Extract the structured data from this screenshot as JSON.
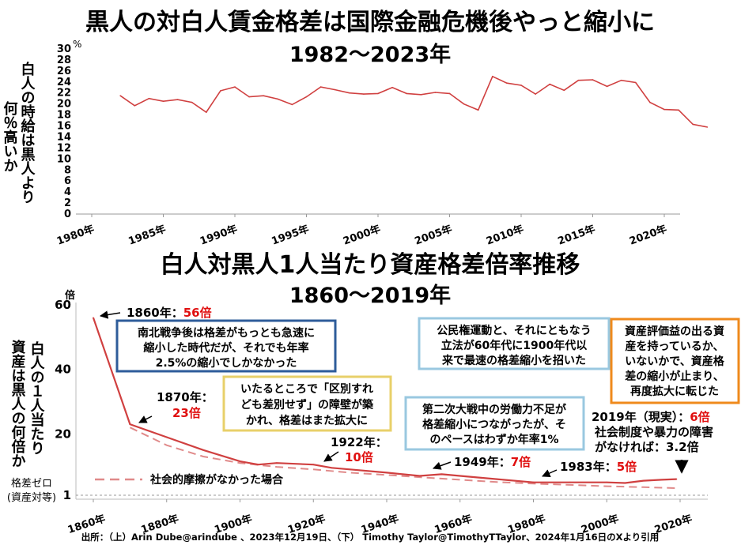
{
  "top_chart": {
    "title": "黒人の対白人賃金格差は国際金融危機後やっと縮小に",
    "subtitle": "1982～2023年",
    "ylabel_col1": "白人の時給は黒人より",
    "ylabel_col2": "何％高いか",
    "y_unit": "%"
  },
  "bottom_chart": {
    "title": "白人対黒人1人当たり資産格差倍率推移",
    "subtitle": "1860～2019年",
    "y_unit": "倍",
    "ylabel_col1": "白人の１人当たり",
    "ylabel_col2": "資産は黒人の何倍か",
    "zero_label_line1": "格差ゼロ",
    "zero_label_line2": "(資産対等)",
    "legend_label": "社会的摩擦がなかった場合",
    "ann_1860_text": "1860年：",
    "ann_1860_value": "56倍",
    "ann_1870_text": "1870年：",
    "ann_1870_value": "23倍",
    "ann_1922_text": "1922年：",
    "ann_1922_value": "10倍",
    "ann_1949_text": "1949年：",
    "ann_1949_value": "7倍",
    "ann_1983_text": "1983年：",
    "ann_1983_value": "5倍",
    "ann_2019_text": "2019年（現実）：",
    "ann_2019_value": "6倍",
    "ann_2019_line2": "社会制度や暴力の障害",
    "ann_2019_line3": "がなければ：3.2倍",
    "box_civilwar": [
      "南北戦争後は格差がもっとも急速に",
      "縮小した時代だが、それでも年率",
      "2.5%の縮小でしかなかった"
    ],
    "box_separate": [
      "いたるところで「区別すれ",
      "ども差別せず」の障壁が築",
      "かれ、格差はまた拡大に"
    ],
    "box_civilrights": [
      "公民権運動と、それにともなう",
      "立法が60年代に1900年代以",
      "来で最速の格差縮小を招いた"
    ],
    "box_ww2": [
      "第二次大戦中の労働力不足が",
      "格差縮小につながったが、そ",
      "のペースはわずか年率1%"
    ],
    "box_assets": [
      "資産評価益の出る資",
      "産を持っているか、",
      "いないかで、資産格",
      "差の縮小が止まり、",
      "再度拡大に転じた"
    ]
  },
  "source": "出所：（上）Arin Dube@arindube 、2023年12月19日、（下） Timothy Taylor@TimothyTTaylor、2024年1月16日のXより引用",
  "colors": {
    "line": "#d04040",
    "dashed": "#e08a8a",
    "value_red": "#e01010",
    "box_blue": "#2e5c9a",
    "box_yellow": "#e8d06a",
    "box_lightblue": "#9ac8e0",
    "box_orange": "#ef8a1c"
  },
  "chart_data": [
    {
      "type": "line",
      "title": "黒人の対白人賃金格差は国際金融危機後やっと縮小に",
      "subtitle": "1982～2023年",
      "ylabel": "白人の時給は黒人より何％高いか",
      "xlabel": "",
      "x_ticks": [
        "1980年",
        "1985年",
        "1990年",
        "1995年",
        "2000年",
        "2005年",
        "2010年",
        "2015年",
        "2020年"
      ],
      "xlim": [
        1980,
        2023
      ],
      "ylim": [
        0,
        30
      ],
      "y_ticks": [
        0,
        2,
        4,
        6,
        8,
        10,
        12,
        14,
        16,
        18,
        20,
        22,
        24,
        26,
        28,
        30
      ],
      "x": [
        1982,
        1983,
        1984,
        1985,
        1986,
        1987,
        1988,
        1989,
        1990,
        1991,
        1992,
        1993,
        1994,
        1995,
        1996,
        1997,
        1998,
        1999,
        2000,
        2001,
        2002,
        2003,
        2004,
        2005,
        2006,
        2007,
        2008,
        2009,
        2010,
        2011,
        2012,
        2013,
        2014,
        2015,
        2016,
        2017,
        2018,
        2019,
        2020,
        2021,
        2022,
        2023
      ],
      "y": [
        21.5,
        19.7,
        21.0,
        20.5,
        20.8,
        20.3,
        18.5,
        22.4,
        23.1,
        21.3,
        21.5,
        20.9,
        19.9,
        21.3,
        23.1,
        22.6,
        22.0,
        21.8,
        21.9,
        23.0,
        21.9,
        21.7,
        22.1,
        21.9,
        20.0,
        18.9,
        25.0,
        23.8,
        23.4,
        21.8,
        23.6,
        22.5,
        24.3,
        24.4,
        23.2,
        24.3,
        23.9,
        20.3,
        19.0,
        18.9,
        16.3,
        15.8
      ],
      "grid": false
    },
    {
      "type": "line",
      "title": "白人対黒人1人当たり資産格差倍率推移",
      "subtitle": "1860～2019年",
      "ylabel": "白人の１人当たり資産は黒人の何倍か",
      "xlabel": "",
      "x_ticks": [
        "1860年",
        "1880年",
        "1900年",
        "1920年",
        "1940年",
        "1960年",
        "1980年",
        "2000年",
        "2020年"
      ],
      "xlim": [
        1855,
        2025
      ],
      "ylim": [
        0,
        60
      ],
      "y_ticks": [
        1,
        20,
        40,
        60
      ],
      "legend": "bottom-left",
      "series": [
        {
          "name": "",
          "style": "solid",
          "x": [
            1860,
            1870,
            1880,
            1890,
            1900,
            1905,
            1910,
            1920,
            1925,
            1930,
            1940,
            1949,
            1955,
            1960,
            1970,
            1980,
            1990,
            2000,
            2005,
            2010,
            2015,
            2019
          ],
          "y": [
            56,
            23,
            19,
            15,
            11.5,
            10.5,
            11,
            10.5,
            9.5,
            9,
            8,
            7,
            7.5,
            7,
            6,
            5,
            5,
            5,
            4.8,
            5.5,
            5.8,
            6
          ]
        },
        {
          "name": "社会的摩擦がなかった場合",
          "style": "dashed",
          "x": [
            1870,
            1880,
            1890,
            1900,
            1910,
            1920,
            1930,
            1940,
            1950,
            1960,
            1970,
            1980,
            1990,
            2000,
            2010,
            2019
          ],
          "y": [
            22,
            16.5,
            13,
            11,
            9.8,
            9,
            8,
            7.3,
            6.5,
            5.8,
            5.1,
            4.6,
            4.2,
            3.8,
            3.5,
            3.2
          ]
        }
      ],
      "annotations": [
        "1860年：56倍",
        "1870年：23倍",
        "1922年：10倍",
        "1949年：7倍",
        "1983年：5倍",
        "2019年（現実）：6倍",
        "社会制度や暴力の障害がなければ：3.2倍"
      ],
      "grid": false
    }
  ]
}
